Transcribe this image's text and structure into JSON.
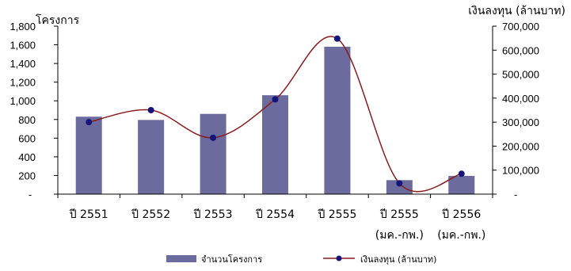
{
  "chart_data": {
    "type": "bar+line",
    "categories": [
      [
        "ปี 2551",
        ""
      ],
      [
        "ปี 2552",
        ""
      ],
      [
        "ปี 2553",
        ""
      ],
      [
        "ปี 2554",
        ""
      ],
      [
        "ปี 2555",
        ""
      ],
      [
        "ปี 2555",
        "(มค.-กพ.)"
      ],
      [
        "ปี 2556",
        "(มค.-กพ.)"
      ]
    ],
    "series": [
      {
        "name": "จำนวนโครงการ",
        "type": "bar",
        "axis": "left",
        "color": "#6b6b9e",
        "values": [
          830,
          795,
          860,
          1060,
          1580,
          150,
          195
        ]
      },
      {
        "name": "เงินลงทุน (ล้านบาท)",
        "type": "line",
        "axis": "right",
        "color": "#8b1a1a",
        "marker_color": "#14147a",
        "values": [
          300000,
          350000,
          235000,
          395000,
          648000,
          45000,
          85000
        ]
      }
    ],
    "y_left": {
      "label": "โครงการ",
      "ylim": [
        0,
        1800
      ],
      "ticks": [
        "-",
        "200",
        "400",
        "600",
        "800",
        "1,000",
        "1,200",
        "1,400",
        "1,600",
        "1,800"
      ]
    },
    "y_right": {
      "label": "เงินลงทุน (ล้านบาท)",
      "ylim": [
        0,
        700000
      ],
      "ticks": [
        "-",
        "100,000",
        "200,000",
        "300,000",
        "400,000",
        "500,000",
        "600,000",
        "700,000"
      ]
    },
    "legend_position": "bottom",
    "grid": false
  }
}
